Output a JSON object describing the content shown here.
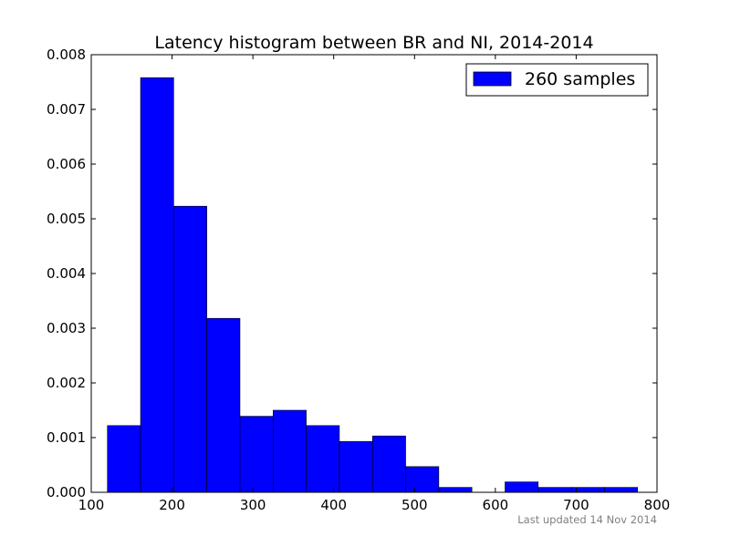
{
  "chart_data": {
    "type": "bar",
    "title": "Latency histogram between BR and NI, 2014-2014",
    "xlabel": "",
    "ylabel": "",
    "xlim": [
      100,
      800
    ],
    "ylim": [
      0,
      0.008
    ],
    "xticks": [
      100,
      200,
      300,
      400,
      500,
      600,
      700,
      800
    ],
    "yticks": [
      0.0,
      0.001,
      0.002,
      0.003,
      0.004,
      0.005,
      0.006,
      0.007,
      0.008
    ],
    "ytick_labels": [
      "0.000",
      "0.001",
      "0.002",
      "0.003",
      "0.004",
      "0.005",
      "0.006",
      "0.007",
      "0.008"
    ],
    "grid": false,
    "legend_position": "top-right",
    "series": [
      {
        "name": "260 samples",
        "color": "#0000ff",
        "bins": [
          {
            "x0": 120,
            "x1": 161,
            "value": 0.00122
          },
          {
            "x0": 161,
            "x1": 202,
            "value": 0.00758
          },
          {
            "x0": 202,
            "x1": 243,
            "value": 0.00523
          },
          {
            "x0": 243,
            "x1": 284,
            "value": 0.00318
          },
          {
            "x0": 284,
            "x1": 325,
            "value": 0.00139
          },
          {
            "x0": 325,
            "x1": 366,
            "value": 0.0015
          },
          {
            "x0": 366,
            "x1": 407,
            "value": 0.00122
          },
          {
            "x0": 407,
            "x1": 448,
            "value": 0.00093
          },
          {
            "x0": 448,
            "x1": 489,
            "value": 0.00103
          },
          {
            "x0": 489,
            "x1": 530,
            "value": 0.00047
          },
          {
            "x0": 530,
            "x1": 571,
            "value": 9e-05
          },
          {
            "x0": 571,
            "x1": 612,
            "value": 0.0
          },
          {
            "x0": 612,
            "x1": 653,
            "value": 0.00019
          },
          {
            "x0": 653,
            "x1": 694,
            "value": 9e-05
          },
          {
            "x0": 694,
            "x1": 735,
            "value": 9e-05
          },
          {
            "x0": 735,
            "x1": 776,
            "value": 9e-05
          }
        ]
      }
    ],
    "footnote": "Last updated 14 Nov 2014"
  },
  "colors": {
    "bar": "#0000ff",
    "axes": "#000000",
    "footnote": "#808080"
  }
}
